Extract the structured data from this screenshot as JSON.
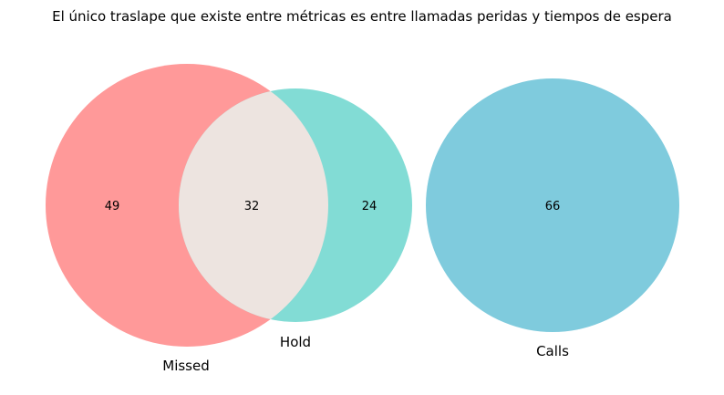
{
  "chart_data": {
    "type": "venn",
    "title": "El único traslape que existe entre métricas es entre llamadas peridas y tiempos de espera",
    "sets": [
      {
        "name": "Missed",
        "color": "#ff9999"
      },
      {
        "name": "Hold",
        "color": "#82dcd5"
      },
      {
        "name": "Calls",
        "color": "#7fcbdd"
      }
    ],
    "regions": {
      "missed_only": 49,
      "missed_and_hold": 32,
      "hold_only": 24,
      "calls_only": 66
    },
    "intersection_color": "#ede4e0"
  }
}
